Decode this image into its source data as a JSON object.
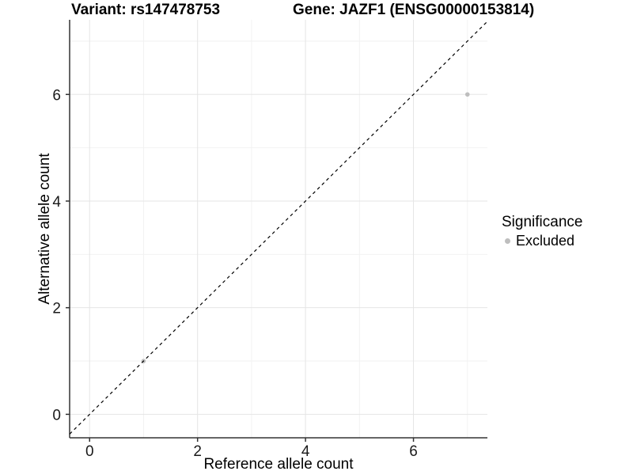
{
  "figure": {
    "background": "#ffffff"
  },
  "chart_data": {
    "type": "scatter",
    "title_left": "Variant: rs147478753",
    "title_right": "Gene: JAZF1 (ENSG00000153814)",
    "xlabel": "Reference allele count",
    "ylabel": "Alternative allele count",
    "xlim": [
      -0.37,
      7.37
    ],
    "ylim": [
      -0.44,
      7.4
    ],
    "x_ticks": [
      0,
      2,
      4,
      6
    ],
    "y_ticks": [
      0,
      2,
      4,
      6
    ],
    "x_minor_gridlines": [
      1,
      3,
      5,
      7
    ],
    "y_minor_gridlines": [
      1,
      3,
      5,
      7
    ],
    "grid": "on",
    "series": [
      {
        "name": "Excluded",
        "marker": "circle",
        "color": "#bebebe",
        "points": [
          {
            "x": 1,
            "y": 1
          },
          {
            "x": 7,
            "y": 6
          }
        ]
      }
    ],
    "reference_line": {
      "equation": "y = x",
      "style": "dashed",
      "color": "#000000"
    },
    "legend": {
      "title": "Significance",
      "position": "right",
      "entries": [
        {
          "label": "Excluded",
          "color": "#bebebe",
          "marker": "circle"
        }
      ]
    },
    "colors": {
      "grid_major": "#e5e5e5",
      "grid_minor": "#f2f2f2",
      "axis_line": "#333333",
      "tick_label": "#1a1a1a",
      "point": "#bebebe"
    }
  }
}
